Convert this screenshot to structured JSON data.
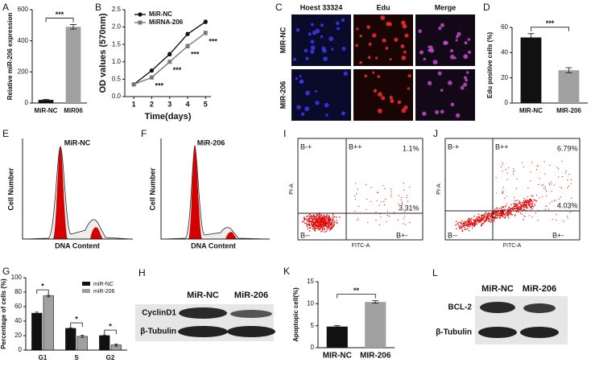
{
  "chart_data": [
    {
      "panel": "A",
      "type": "bar",
      "ylabel": "Relative miR-206 expression",
      "categories": [
        "MiR-NC",
        "MiR06"
      ],
      "values": [
        20,
        490
      ],
      "errors": [
        4,
        14
      ],
      "colors": [
        "#111111",
        "#a0a0a0"
      ],
      "ylim": [
        0,
        600
      ],
      "yticks": [
        0,
        200,
        400,
        600
      ],
      "annotations": [
        "***"
      ]
    },
    {
      "panel": "B",
      "type": "line",
      "xlabel": "Time(days)",
      "ylabel": "OD values (570nm)",
      "x": [
        1,
        2,
        3,
        4,
        5
      ],
      "series": [
        {
          "name": "MiR-NC",
          "color": "#111111",
          "marker": "circle",
          "values": [
            0.35,
            0.75,
            1.22,
            1.8,
            2.15
          ],
          "errors": [
            0.02,
            0.03,
            0.05,
            0.04,
            0.05
          ]
        },
        {
          "name": "MiRNA-206",
          "color": "#777777",
          "marker": "square",
          "values": [
            0.35,
            0.55,
            1.0,
            1.45,
            1.83
          ],
          "errors": [
            0.02,
            0.03,
            0.04,
            0.05,
            0.05
          ]
        }
      ],
      "xlim": [
        0.5,
        5.3
      ],
      "xticks": [
        1,
        2,
        3,
        4,
        5
      ],
      "ylim": [
        0,
        2.5
      ],
      "yticks": [
        {
          "value": 0,
          "label": "0.0"
        },
        0.5,
        {
          "value": 1,
          "label": "1.0"
        },
        1.5,
        {
          "value": 2,
          "label": "2.0"
        },
        2.5
      ],
      "annotations": [
        "***",
        "***",
        "***",
        "***"
      ]
    },
    {
      "panel": "D",
      "type": "bar",
      "ylabel": "Edu positive cells (%)",
      "categories": [
        "MIR-NC",
        "MIR-206"
      ],
      "values": [
        52,
        26
      ],
      "errors": [
        3,
        2
      ],
      "colors": [
        "#111111",
        "#a0a0a0"
      ],
      "ylim": [
        0,
        60
      ],
      "yticks": [
        0,
        20,
        40,
        60
      ],
      "annotations": [
        "***"
      ]
    },
    {
      "panel": "G",
      "type": "bar",
      "ylabel": "Percentage of cells (%)",
      "categories": [
        "G1",
        "S",
        "G2"
      ],
      "series": [
        {
          "name": "miR-NC",
          "color": "#111111",
          "values": [
            51,
            30,
            20
          ],
          "errors": [
            1.5,
            1,
            1
          ]
        },
        {
          "name": "miR-206",
          "color": "#a0a0a0",
          "values": [
            75,
            19,
            7
          ],
          "errors": [
            1.5,
            1.5,
            1.5
          ]
        }
      ],
      "ylim": [
        0,
        100
      ],
      "yticks": [
        0,
        20,
        40,
        60,
        80,
        100
      ],
      "annotations": [
        "*",
        "*",
        "*"
      ]
    },
    {
      "panel": "K",
      "type": "bar",
      "ylabel": "Apoptopic cell(%)",
      "categories": [
        "MIR-NC",
        "MIR-206"
      ],
      "values": [
        4.8,
        10.4
      ],
      "errors": [
        0.2,
        0.3
      ],
      "colors": [
        "#111111",
        "#a0a0a0"
      ],
      "ylim": [
        0,
        15
      ],
      "yticks": [
        0,
        5,
        10,
        15
      ],
      "annotations": [
        "**"
      ]
    }
  ],
  "panels": {
    "C": {
      "panel": "C",
      "columns": [
        "Hoest 33324",
        "Edu",
        "Merge"
      ],
      "rows": [
        "MIR-NC",
        "MIR-206"
      ]
    },
    "E": {
      "panel": "E",
      "title": "MiR-NC",
      "ylabel": "Cell Number",
      "xlabel": "DNA Content"
    },
    "F": {
      "panel": "F",
      "title": "MiR-206",
      "ylabel": "Cell Number",
      "xlabel": "DNA Content"
    },
    "I": {
      "panel": "I",
      "quadrants": [
        "B-+",
        "B++",
        "B--",
        "B+-"
      ],
      "percentages": [
        "1.1%",
        "3.31%"
      ],
      "ylabel": "PI-A",
      "xlabel": "FITC-A"
    },
    "J": {
      "panel": "J",
      "quadrants": [
        "B-+",
        "B++",
        "B--",
        "B+-"
      ],
      "percentages": [
        "6.79%",
        "4.03%"
      ],
      "ylabel": "PI-A",
      "xlabel": "FITC-A"
    },
    "H": {
      "panel": "H",
      "lanes": [
        "MiR-NC",
        "MiR-206"
      ],
      "proteins": [
        "CyclinD1",
        "β-Tubulin"
      ]
    },
    "L": {
      "panel": "L",
      "lanes": [
        "MiR-NC",
        "MiR-206"
      ],
      "proteins": [
        "BCL-2",
        "β-Tubulin"
      ]
    }
  }
}
